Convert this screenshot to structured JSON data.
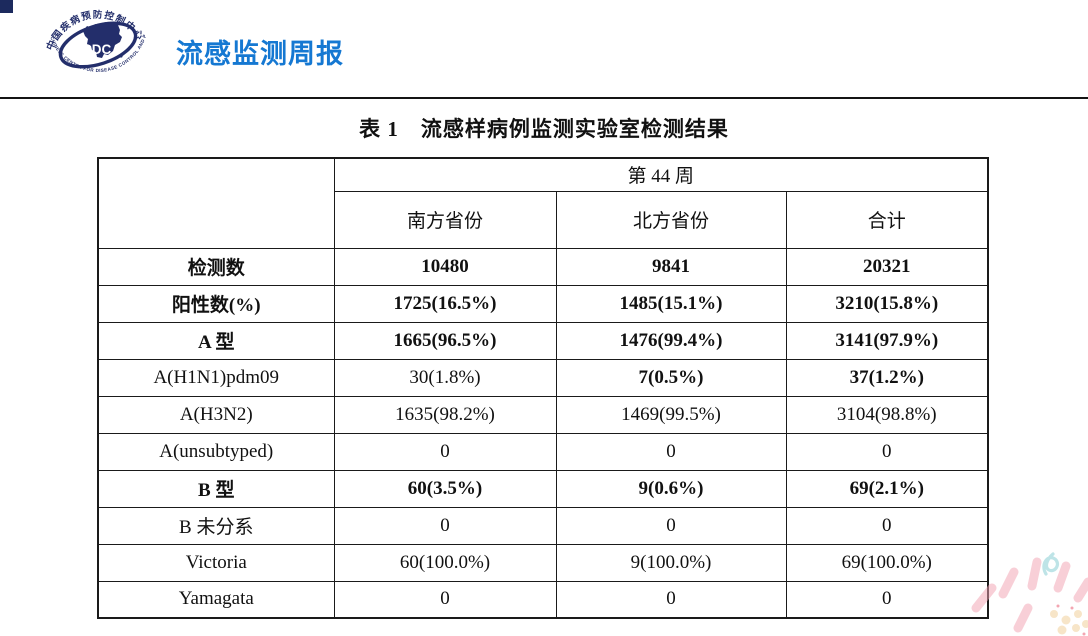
{
  "header": {
    "title": "流感监测周报",
    "logo": {
      "center_text": "CDC",
      "top_arc": "中国疾病预防控制中心",
      "bottom_arc": "CHINESE CENTER FOR DISEASE CONTROL AND PREVENTION"
    },
    "accent_color": "#1578d2",
    "logo_navy": "#232e6b"
  },
  "table": {
    "caption": "表 1　流感样病例监测实验室检测结果",
    "week_header": "第 44 周",
    "col_headers": [
      "南方省份",
      "北方省份",
      "合计"
    ],
    "rows": [
      {
        "label": "检测数",
        "bold": true,
        "cells": [
          {
            "t": "10480",
            "b": true
          },
          {
            "t": "9841",
            "b": true
          },
          {
            "t": "20321",
            "b": true
          }
        ]
      },
      {
        "label": "阳性数(%)",
        "bold": true,
        "cells": [
          {
            "t": "1725(16.5%)",
            "b": true
          },
          {
            "t": "1485(15.1%)",
            "b": true
          },
          {
            "t": "3210(15.8%)",
            "b": true
          }
        ]
      },
      {
        "label": "A 型",
        "bold": true,
        "cells": [
          {
            "t": "1665(96.5%)",
            "b": true
          },
          {
            "t": "1476(99.4%)",
            "b": true
          },
          {
            "t": "3141(97.9%)",
            "b": true
          }
        ]
      },
      {
        "label": "A(H1N1)pdm09",
        "bold": false,
        "cells": [
          {
            "t": "30(1.8%)",
            "b": false
          },
          {
            "t": "7(0.5%)",
            "b": true
          },
          {
            "t": "37(1.2%)",
            "b": true
          }
        ]
      },
      {
        "label": "A(H3N2)",
        "bold": false,
        "cells": [
          {
            "t": "1635(98.2%)",
            "b": false
          },
          {
            "t": "1469(99.5%)",
            "b": false
          },
          {
            "t": "3104(98.8%)",
            "b": false
          }
        ]
      },
      {
        "label": "A(unsubtyped)",
        "bold": false,
        "cells": [
          {
            "t": "0",
            "b": false
          },
          {
            "t": "0",
            "b": false
          },
          {
            "t": "0",
            "b": false
          }
        ]
      },
      {
        "label": "B 型",
        "bold": true,
        "cells": [
          {
            "t": "60(3.5%)",
            "b": true
          },
          {
            "t": "9(0.6%)",
            "b": true
          },
          {
            "t": "69(2.1%)",
            "b": true
          }
        ]
      },
      {
        "label": "B 未分系",
        "bold": false,
        "cells": [
          {
            "t": "0",
            "b": false
          },
          {
            "t": "0",
            "b": false
          },
          {
            "t": "0",
            "b": false
          }
        ]
      },
      {
        "label": "Victoria",
        "bold": false,
        "cells": [
          {
            "t": "60(100.0%)",
            "b": false
          },
          {
            "t": "9(100.0%)",
            "b": false
          },
          {
            "t": "69(100.0%)",
            "b": false
          }
        ]
      },
      {
        "label": "Yamagata",
        "bold": false,
        "cells": [
          {
            "t": "0",
            "b": false
          },
          {
            "t": "0",
            "b": false
          },
          {
            "t": "0",
            "b": false
          }
        ]
      }
    ]
  }
}
